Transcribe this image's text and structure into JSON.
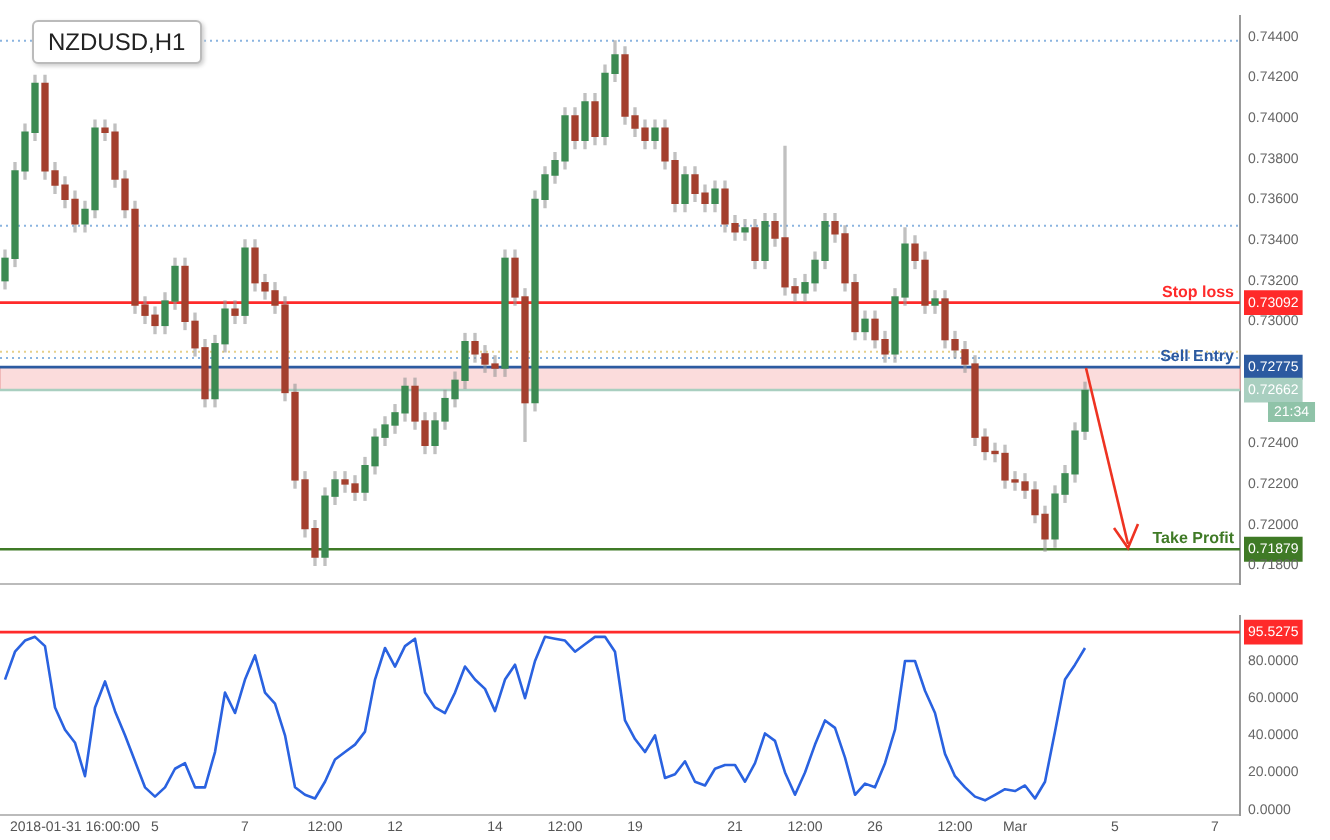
{
  "chart_data": [
    {
      "type": "candlestick",
      "title": "NZDUSD,H1",
      "categories": [
        null,
        null,
        null,
        null,
        null,
        null,
        null,
        null,
        null,
        null,
        null,
        null,
        null,
        null,
        null,
        null,
        null,
        null,
        null,
        null,
        null,
        null,
        null,
        null,
        null,
        null,
        null,
        null,
        null,
        null,
        null,
        null,
        null,
        null,
        null,
        null,
        null,
        null,
        null,
        null,
        null,
        null,
        null,
        null,
        null,
        null,
        null,
        null,
        null,
        null,
        null,
        null,
        null,
        null,
        null,
        null,
        null,
        null,
        null,
        null,
        null,
        null,
        null,
        null,
        null,
        null,
        null,
        null,
        null,
        null,
        null,
        null,
        null,
        null,
        null,
        null,
        null,
        null,
        null,
        null,
        null,
        null,
        null,
        null,
        null,
        null,
        null,
        null,
        null,
        null,
        null,
        null,
        null,
        null,
        null,
        null,
        null,
        null,
        null,
        null,
        null,
        null,
        null,
        null,
        null,
        null,
        null,
        null,
        null,
        null,
        null,
        null,
        null,
        null,
        null,
        null,
        null,
        null,
        null,
        null,
        null,
        null,
        null,
        null
      ],
      "ohlc": [
        [
          0.732,
          0.7335,
          0.7316,
          0.7331
        ],
        [
          0.7331,
          0.7378,
          0.7327,
          0.7374
        ],
        [
          0.7374,
          0.7397,
          0.737,
          0.7393
        ],
        [
          0.7393,
          0.7421,
          0.7389,
          0.7417
        ],
        [
          0.7417,
          0.7421,
          0.737,
          0.7374
        ],
        [
          0.7374,
          0.7378,
          0.7363,
          0.7367
        ],
        [
          0.7367,
          0.7371,
          0.7356,
          0.736
        ],
        [
          0.736,
          0.7364,
          0.7344,
          0.7348
        ],
        [
          0.7348,
          0.7359,
          0.7344,
          0.7355
        ],
        [
          0.7355,
          0.7399,
          0.7351,
          0.7395
        ],
        [
          0.7395,
          0.7399,
          0.7389,
          0.7393
        ],
        [
          0.7393,
          0.7397,
          0.7366,
          0.737
        ],
        [
          0.737,
          0.7374,
          0.7351,
          0.7355
        ],
        [
          0.7355,
          0.7359,
          0.7304,
          0.7308
        ],
        [
          0.7308,
          0.7312,
          0.7299,
          0.7303
        ],
        [
          0.7303,
          0.7307,
          0.7294,
          0.7298
        ],
        [
          0.7298,
          0.7314,
          0.7294,
          0.731
        ],
        [
          0.731,
          0.7331,
          0.7306,
          0.7327
        ],
        [
          0.7327,
          0.7331,
          0.7296,
          0.73
        ],
        [
          0.73,
          0.7304,
          0.7283,
          0.7287
        ],
        [
          0.7287,
          0.7291,
          0.7258,
          0.7262
        ],
        [
          0.7262,
          0.7293,
          0.7258,
          0.7289
        ],
        [
          0.7289,
          0.731,
          0.7285,
          0.7306
        ],
        [
          0.7306,
          0.731,
          0.7299,
          0.7303
        ],
        [
          0.7303,
          0.734,
          0.7299,
          0.7336
        ],
        [
          0.7336,
          0.734,
          0.7315,
          0.7319
        ],
        [
          0.7319,
          0.7323,
          0.7311,
          0.7315
        ],
        [
          0.7315,
          0.7319,
          0.7304,
          0.7308
        ],
        [
          0.7308,
          0.7312,
          0.7261,
          0.7265
        ],
        [
          0.7265,
          0.7269,
          0.7218,
          0.7222
        ],
        [
          0.7222,
          0.7226,
          0.7194,
          0.7198
        ],
        [
          0.7198,
          0.7202,
          0.718,
          0.7184
        ],
        [
          0.7184,
          0.7218,
          0.718,
          0.7214
        ],
        [
          0.7214,
          0.7226,
          0.721,
          0.7222
        ],
        [
          0.7222,
          0.7226,
          0.7216,
          0.722
        ],
        [
          0.722,
          0.7224,
          0.7212,
          0.7216
        ],
        [
          0.7216,
          0.7233,
          0.7212,
          0.7229
        ],
        [
          0.7229,
          0.7247,
          0.7225,
          0.7243
        ],
        [
          0.7243,
          0.7253,
          0.7239,
          0.7249
        ],
        [
          0.7249,
          0.7259,
          0.7245,
          0.7255
        ],
        [
          0.7255,
          0.7272,
          0.7251,
          0.7268
        ],
        [
          0.7268,
          0.7272,
          0.7247,
          0.7251
        ],
        [
          0.7251,
          0.7255,
          0.7235,
          0.7239
        ],
        [
          0.7239,
          0.7255,
          0.7235,
          0.7251
        ],
        [
          0.7251,
          0.7266,
          0.7247,
          0.7262
        ],
        [
          0.7262,
          0.7275,
          0.7258,
          0.7271
        ],
        [
          0.7271,
          0.7294,
          0.7267,
          0.729
        ],
        [
          0.729,
          0.7294,
          0.728,
          0.7284
        ],
        [
          0.7284,
          0.7288,
          0.7275,
          0.7279
        ],
        [
          0.7279,
          0.7283,
          0.7273,
          0.7277
        ],
        [
          0.7277,
          0.7335,
          0.7273,
          0.7331
        ],
        [
          0.7331,
          0.7335,
          0.7308,
          0.7312
        ],
        [
          0.7312,
          0.7316,
          0.7241,
          0.726
        ],
        [
          0.726,
          0.7364,
          0.7256,
          0.736
        ],
        [
          0.736,
          0.7376,
          0.7356,
          0.7372
        ],
        [
          0.7372,
          0.7383,
          0.7368,
          0.7379
        ],
        [
          0.7379,
          0.7405,
          0.7375,
          0.7401
        ],
        [
          0.7401,
          0.7405,
          0.7385,
          0.7389
        ],
        [
          0.7389,
          0.7412,
          0.7385,
          0.7408
        ],
        [
          0.7408,
          0.7412,
          0.7387,
          0.7391
        ],
        [
          0.7391,
          0.7426,
          0.7387,
          0.7422
        ],
        [
          0.7422,
          0.7438,
          0.7418,
          0.7431
        ],
        [
          0.7431,
          0.7435,
          0.7397,
          0.7401
        ],
        [
          0.7401,
          0.7405,
          0.7391,
          0.7395
        ],
        [
          0.7395,
          0.7399,
          0.7385,
          0.7389
        ],
        [
          0.7389,
          0.7399,
          0.7385,
          0.7395
        ],
        [
          0.7395,
          0.7399,
          0.7375,
          0.7379
        ],
        [
          0.7379,
          0.7383,
          0.7354,
          0.7358
        ],
        [
          0.7358,
          0.7376,
          0.7354,
          0.7372
        ],
        [
          0.7372,
          0.7376,
          0.7359,
          0.7363
        ],
        [
          0.7363,
          0.7367,
          0.7354,
          0.7358
        ],
        [
          0.7358,
          0.7369,
          0.7354,
          0.7365
        ],
        [
          0.7365,
          0.7369,
          0.7344,
          0.7348
        ],
        [
          0.7348,
          0.7352,
          0.734,
          0.7344
        ],
        [
          0.7344,
          0.735,
          0.734,
          0.7346
        ],
        [
          0.7346,
          0.735,
          0.7326,
          0.733
        ],
        [
          0.733,
          0.7353,
          0.7326,
          0.7349
        ],
        [
          0.7349,
          0.7353,
          0.7337,
          0.7341
        ],
        [
          0.7341,
          0.7386,
          0.7313,
          0.7317
        ],
        [
          0.7317,
          0.7321,
          0.731,
          0.7314
        ],
        [
          0.7314,
          0.7323,
          0.731,
          0.7319
        ],
        [
          0.7319,
          0.7334,
          0.7315,
          0.733
        ],
        [
          0.733,
          0.7353,
          0.7326,
          0.7349
        ],
        [
          0.7349,
          0.7353,
          0.7339,
          0.7343
        ],
        [
          0.7343,
          0.7347,
          0.7315,
          0.7319
        ],
        [
          0.7319,
          0.7323,
          0.7291,
          0.7295
        ],
        [
          0.7295,
          0.7305,
          0.7291,
          0.7301
        ],
        [
          0.7301,
          0.7305,
          0.7287,
          0.7291
        ],
        [
          0.7291,
          0.7295,
          0.728,
          0.7284
        ],
        [
          0.7284,
          0.7316,
          0.728,
          0.7312
        ],
        [
          0.7312,
          0.7346,
          0.7308,
          0.7338
        ],
        [
          0.7338,
          0.7342,
          0.7326,
          0.733
        ],
        [
          0.733,
          0.7334,
          0.7304,
          0.7308
        ],
        [
          0.7308,
          0.7315,
          0.7304,
          0.7311
        ],
        [
          0.7311,
          0.7315,
          0.7287,
          0.7291
        ],
        [
          0.7291,
          0.7295,
          0.7282,
          0.7286
        ],
        [
          0.7286,
          0.729,
          0.7275,
          0.7279
        ],
        [
          0.7279,
          0.7283,
          0.7239,
          0.7243
        ],
        [
          0.7243,
          0.7247,
          0.7232,
          0.7236
        ],
        [
          0.7236,
          0.724,
          0.7231,
          0.7235
        ],
        [
          0.7235,
          0.7239,
          0.7218,
          0.7222
        ],
        [
          0.7222,
          0.7226,
          0.7217,
          0.7221
        ],
        [
          0.7221,
          0.7225,
          0.7213,
          0.7217
        ],
        [
          0.7217,
          0.7221,
          0.7201,
          0.7205
        ],
        [
          0.7205,
          0.7209,
          0.7187,
          0.7193
        ],
        [
          0.7193,
          0.7219,
          0.7189,
          0.7215
        ],
        [
          0.7215,
          0.7229,
          0.7211,
          0.7225
        ],
        [
          0.7225,
          0.725,
          0.7221,
          0.7246
        ],
        [
          0.7246,
          0.727,
          0.7242,
          0.7266
        ],
        null,
        null,
        null,
        null,
        null,
        null,
        null,
        null,
        null,
        null,
        null,
        null,
        null,
        null,
        null
      ],
      "colors": [
        "#3c8a52",
        "#3c8a52",
        "#3c8a52",
        "#3c8a52",
        "#a4402e",
        "#a4402e",
        "#a4402e",
        "#a4402e",
        "#3c8a52",
        "#3c8a52",
        "#a4402e",
        "#a4402e",
        "#a4402e",
        "#a4402e",
        "#a4402e",
        "#a4402e",
        "#3c8a52",
        "#3c8a52",
        "#a4402e",
        "#a4402e",
        "#a4402e",
        "#3c8a52",
        "#3c8a52",
        "#a4402e",
        "#3c8a52",
        "#a4402e",
        "#a4402e",
        "#a4402e",
        "#a4402e",
        "#a4402e",
        "#a4402e",
        "#a4402e",
        "#3c8a52",
        "#3c8a52",
        "#a4402e",
        "#a4402e",
        "#3c8a52",
        "#3c8a52",
        "#3c8a52",
        "#3c8a52",
        "#3c8a52",
        "#a4402e",
        "#a4402e",
        "#3c8a52",
        "#3c8a52",
        "#3c8a52",
        "#3c8a52",
        "#a4402e",
        "#a4402e",
        "#a4402e",
        "#3c8a52",
        "#a4402e",
        "#a4402e",
        "#3c8a52",
        "#3c8a52",
        "#3c8a52",
        "#3c8a52",
        "#a4402e",
        "#3c8a52",
        "#a4402e",
        "#3c8a52",
        "#3c8a52",
        "#a4402e",
        "#a4402e",
        "#a4402e",
        "#3c8a52",
        "#a4402e",
        "#a4402e",
        "#3c8a52",
        "#a4402e",
        "#a4402e",
        "#3c8a52",
        "#a4402e",
        "#a4402e",
        "#3c8a52",
        "#a4402e",
        "#3c8a52",
        "#a4402e",
        "#a4402e",
        "#a4402e",
        "#3c8a52",
        "#3c8a52",
        "#3c8a52",
        "#a4402e",
        "#a4402e",
        "#a4402e",
        "#3c8a52",
        "#a4402e",
        "#a4402e",
        "#3c8a52",
        "#3c8a52",
        "#a4402e",
        "#a4402e",
        "#3c8a52",
        "#a4402e",
        "#a4402e",
        "#a4402e",
        "#a4402e",
        "#a4402e",
        "#a4402e",
        "#a4402e",
        "#a4402e",
        "#a4402e",
        "#a4402e",
        "#a4402e",
        "#3c8a52",
        "#3c8a52",
        "#3c8a52",
        "#3c8a52",
        null,
        null,
        null,
        null,
        null,
        null,
        null,
        null,
        null,
        null,
        null,
        null,
        null,
        null,
        null
      ],
      "ylim": [
        0.7171,
        0.745
      ],
      "yticks": [
        {
          "value": 0.744,
          "label": "0.74400"
        },
        {
          "value": 0.742,
          "label": "0.74200"
        },
        {
          "value": 0.74,
          "label": "0.74000"
        },
        {
          "value": 0.738,
          "label": "0.73800"
        },
        {
          "value": 0.736,
          "label": "0.73600"
        },
        {
          "value": 0.734,
          "label": "0.73400"
        },
        {
          "value": 0.732,
          "label": "0.73200"
        },
        {
          "value": 0.73092,
          "label": "0.73092"
        },
        {
          "value": 0.73,
          "label": "0.73000"
        },
        {
          "value": 0.72775,
          "label": "0.72775"
        },
        {
          "value": 0.72662,
          "label": "0.72662"
        },
        {
          "value": 0.724,
          "label": "0.72400"
        },
        {
          "value": 0.722,
          "label": "0.72200"
        },
        {
          "value": 0.72,
          "label": "0.72000"
        },
        {
          "value": 0.71879,
          "label": "0.71879"
        },
        {
          "value": 0.718,
          "label": "0.71800"
        }
      ],
      "ref_lines": [
        {
          "axis": "y",
          "value": 0.73092,
          "label": "Stop loss",
          "color": "#ff2a2a",
          "line_style": "solid"
        },
        {
          "axis": "y",
          "value": 0.72775,
          "label": "Sell Entry",
          "color": "#2c5aa0",
          "line_style": "solid"
        },
        {
          "axis": "y",
          "value": 0.71879,
          "label": "Take Profit",
          "color": "#3f7a26",
          "line_style": "solid"
        },
        {
          "axis": "y",
          "value": 0.72662,
          "label": null,
          "color": "#a9cfc0",
          "line_style": "solid"
        },
        {
          "axis": "y",
          "value": 0.7438,
          "label": null,
          "color": "#8ab4e0",
          "line_style": "dotted"
        },
        {
          "axis": "y",
          "value": 0.7282,
          "label": null,
          "color": "#8ab4e0",
          "line_style": "dotted"
        },
        {
          "axis": "y",
          "value": 0.7347,
          "label": null,
          "color": "#8ab4e0",
          "line_style": "dotted"
        },
        {
          "axis": "y",
          "value": 0.7285,
          "label": null,
          "color": "#e6cf8a",
          "line_style": "dotted"
        }
      ],
      "bands": [
        {
          "axis": "y",
          "from": 0.72662,
          "to": 0.72775,
          "color": "#fbdcdc"
        }
      ],
      "annotations": [
        "21:34"
      ],
      "tick_labels": "y"
    },
    {
      "type": "line",
      "categories": [
        null,
        null,
        null,
        null,
        null,
        null,
        null,
        "2018-01-31 16:00:00",
        null,
        null,
        null,
        null,
        null,
        null,
        null,
        "5",
        null,
        null,
        null,
        null,
        null,
        null,
        null,
        null,
        "7",
        null,
        null,
        null,
        null,
        null,
        null,
        null,
        "12:00",
        null,
        null,
        null,
        null,
        null,
        null,
        "12",
        null,
        null,
        null,
        null,
        null,
        null,
        null,
        null,
        null,
        "14",
        null,
        null,
        null,
        null,
        null,
        null,
        "12:00",
        null,
        null,
        null,
        null,
        null,
        null,
        "19",
        null,
        null,
        null,
        null,
        null,
        null,
        null,
        null,
        null,
        "21",
        null,
        null,
        null,
        null,
        null,
        null,
        "12:00",
        null,
        null,
        null,
        null,
        null,
        null,
        "26",
        null,
        null,
        null,
        null,
        null,
        null,
        null,
        "12:00",
        null,
        null,
        null,
        null,
        null,
        "Mar",
        null,
        null,
        null,
        null,
        null,
        null,
        null,
        null,
        null,
        "5",
        null,
        null,
        null,
        null,
        null,
        null,
        null,
        null,
        null,
        "7",
        null,
        null
      ],
      "series": [
        {
          "color": "#2a62e0",
          "values": [
            70,
            85,
            91,
            93,
            88,
            55,
            43,
            36,
            18,
            55,
            69,
            53,
            40,
            26,
            12,
            7,
            12,
            22,
            25,
            12,
            12,
            31,
            63,
            52,
            70,
            83,
            63,
            57,
            40,
            12,
            8,
            6,
            15,
            27,
            31,
            35,
            42,
            70,
            87,
            77,
            88,
            92,
            63,
            55,
            52,
            63,
            77,
            70,
            65,
            53,
            70,
            78,
            60,
            80,
            93,
            92,
            91,
            85,
            89,
            93,
            93,
            85,
            48,
            38,
            31,
            40,
            17,
            19,
            26,
            15,
            13,
            22,
            24,
            24,
            15,
            25,
            41,
            37,
            20,
            8,
            20,
            35,
            48,
            44,
            28,
            8,
            14,
            12,
            25,
            43,
            80,
            80,
            64,
            52,
            30,
            18,
            12,
            7,
            5,
            8,
            11,
            10,
            13,
            6,
            15,
            42,
            70,
            78,
            87,
            null,
            null,
            null,
            null,
            null,
            null,
            null,
            null,
            null,
            null,
            null,
            null,
            null,
            null,
            null
          ]
        }
      ],
      "ylim": [
        -3,
        104
      ],
      "yticks": [
        {
          "value": 0,
          "label": "0.0000"
        },
        {
          "value": 20,
          "label": "20.0000"
        },
        {
          "value": 40,
          "label": "40.0000"
        },
        {
          "value": 60,
          "label": "60.0000"
        },
        {
          "value": 80,
          "label": "80.0000"
        },
        {
          "value": 95.5275,
          "label": "95.5275"
        }
      ],
      "ref_lines": [
        {
          "axis": "y",
          "value": 95.5275,
          "label": null,
          "color": "#ff2a2a",
          "line_style": "solid"
        }
      ]
    }
  ]
}
